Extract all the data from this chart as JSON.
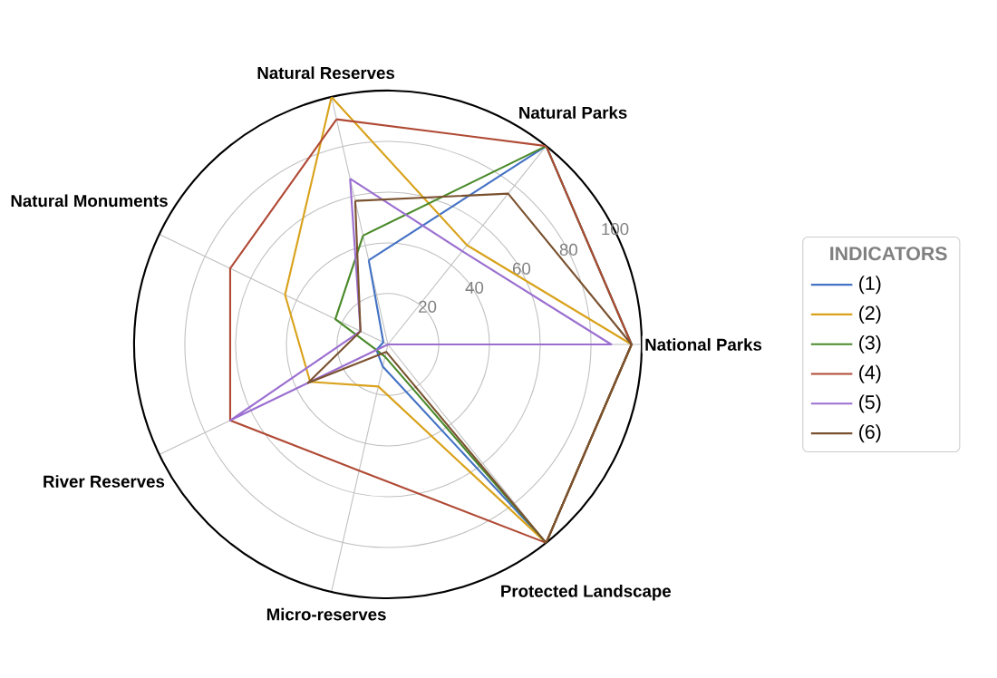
{
  "chart_data": {
    "type": "radar",
    "legend_title": "INDICATORS",
    "legend": "right",
    "grid": true,
    "marker": "none",
    "line_style": "solid",
    "ylim": [
      0,
      100
    ],
    "yticks": [
      20,
      40,
      60,
      80,
      100
    ],
    "categories": [
      "Natural Reserves",
      "Natural Parks",
      "National Parks",
      "Protected Landscape",
      "Micro-reserves",
      "River Reserves",
      "Natural Monuments"
    ],
    "series": [
      {
        "name": "(1)",
        "color": "#4472c4",
        "values": [
          34,
          100,
          96,
          100,
          9,
          5,
          2
        ]
      },
      {
        "name": "(2)",
        "color": "#d9a21b",
        "values": [
          100,
          50,
          96,
          100,
          17,
          34,
          45
        ]
      },
      {
        "name": "(3)",
        "color": "#4a8a2a",
        "values": [
          44,
          100,
          96,
          100,
          5,
          5,
          23
        ]
      },
      {
        "name": "(4)",
        "color": "#b04a35",
        "values": [
          91,
          100,
          96,
          100,
          51,
          69,
          69
        ]
      },
      {
        "name": "(5)",
        "color": "#9b6fd0",
        "values": [
          67,
          47,
          88,
          0,
          0,
          69,
          12
        ]
      },
      {
        "name": "(6)",
        "color": "#7a5230",
        "values": [
          58,
          76,
          96,
          100,
          3,
          35,
          12
        ]
      }
    ]
  }
}
